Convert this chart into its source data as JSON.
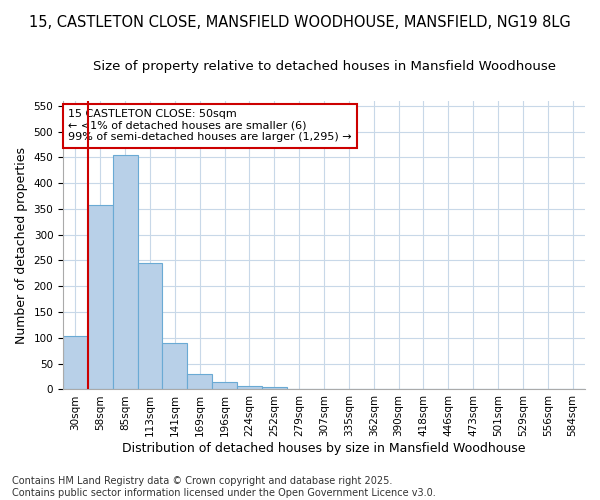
{
  "title": "15, CASTLETON CLOSE, MANSFIELD WOODHOUSE, MANSFIELD, NG19 8LG",
  "subtitle": "Size of property relative to detached houses in Mansfield Woodhouse",
  "xlabel": "Distribution of detached houses by size in Mansfield Woodhouse",
  "ylabel": "Number of detached properties",
  "categories": [
    "30sqm",
    "58sqm",
    "85sqm",
    "113sqm",
    "141sqm",
    "169sqm",
    "196sqm",
    "224sqm",
    "252sqm",
    "279sqm",
    "307sqm",
    "335sqm",
    "362sqm",
    "390sqm",
    "418sqm",
    "446sqm",
    "473sqm",
    "501sqm",
    "529sqm",
    "556sqm",
    "584sqm"
  ],
  "values": [
    104,
    357,
    455,
    246,
    90,
    30,
    14,
    7,
    4,
    1,
    0,
    0,
    0,
    0,
    0,
    0,
    0,
    0,
    0,
    0,
    1
  ],
  "bar_color": "#b8d0e8",
  "bar_edge_color": "#6aaad4",
  "vline_color": "#cc0000",
  "annotation_text": "15 CASTLETON CLOSE: 50sqm\n← <1% of detached houses are smaller (6)\n99% of semi-detached houses are larger (1,295) →",
  "annotation_box_color": "#ffffff",
  "annotation_box_edge": "#cc0000",
  "ylim": [
    0,
    560
  ],
  "yticks": [
    0,
    50,
    100,
    150,
    200,
    250,
    300,
    350,
    400,
    450,
    500,
    550
  ],
  "footer": "Contains HM Land Registry data © Crown copyright and database right 2025.\nContains public sector information licensed under the Open Government Licence v3.0.",
  "background_color": "#ffffff",
  "grid_color": "#c8d8e8",
  "title_fontsize": 10.5,
  "subtitle_fontsize": 9.5,
  "axis_label_fontsize": 9,
  "tick_fontsize": 7.5,
  "footer_fontsize": 7,
  "annotation_fontsize": 8
}
